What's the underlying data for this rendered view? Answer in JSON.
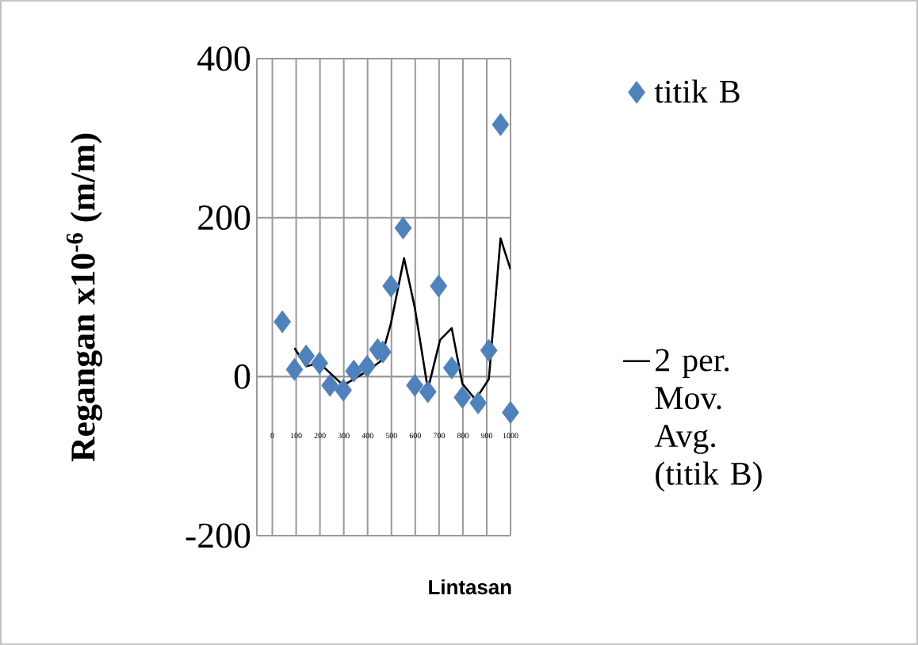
{
  "chart_data": {
    "type": "scatter",
    "xlabel": "Lintasan",
    "ylabel": "Regangan x10$^{-6}$ (m/m)",
    "xlim": [
      -65,
      1000
    ],
    "xticks": [
      0,
      100,
      200,
      300,
      400,
      500,
      600,
      700,
      800,
      900,
      1000
    ],
    "ylim": [
      -200,
      400
    ],
    "yticks": [
      -200,
      0,
      200,
      400
    ],
    "grid": true,
    "legend": "right",
    "series": [
      {
        "name": "titik B",
        "marker": "diamond",
        "color": "#4f81bd",
        "x": [
          42,
          93,
          142,
          198,
          242,
          298,
          342,
          398,
          442,
          464,
          498,
          549,
          598,
          653,
          698,
          753,
          798,
          864,
          909,
          958,
          1000
        ],
        "values": [
          69,
          9,
          26,
          17,
          -11,
          -17,
          7,
          13,
          34,
          31,
          114,
          187,
          -11,
          -19,
          114,
          11,
          -26,
          -33,
          33,
          317,
          -45
        ]
      },
      {
        "name": "2 per. Mov. Avg. (titik B)",
        "type": "line",
        "marker": "none",
        "color": "#000000",
        "x": [
          93,
          142,
          198,
          298,
          398,
          453,
          498,
          553,
          598,
          653,
          704,
          753,
          798,
          853,
          909,
          958,
          1000
        ],
        "values": [
          36,
          13,
          17,
          -11,
          7,
          19,
          67,
          149,
          87,
          -16,
          46,
          61,
          -9,
          -29,
          -3,
          174,
          135
        ]
      }
    ]
  }
}
